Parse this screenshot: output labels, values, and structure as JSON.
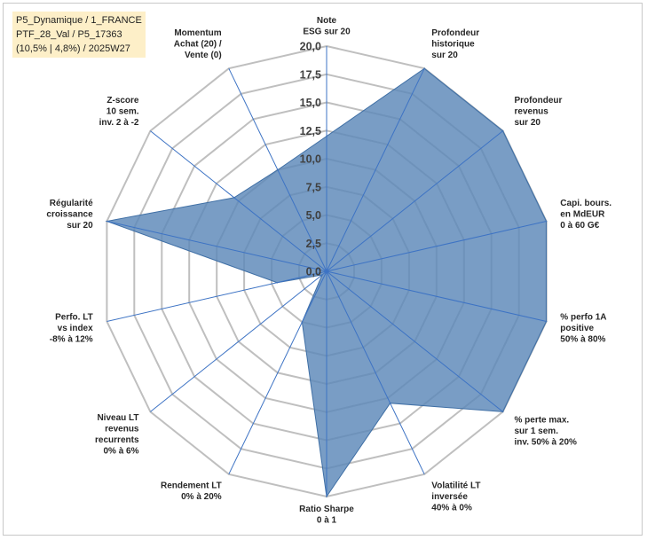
{
  "info": {
    "line1": "P5_Dynamique / 1_FRANCE",
    "line2": "PTF_28_Val / P5_17363",
    "line3": "(10,5% | 4,8%) / 2025W27"
  },
  "colors": {
    "fill": "#5b87b8",
    "stroke": "#3f6fa5",
    "grid": "#bfbfbf",
    "spoke": "#3d73c4",
    "info_bg": "#fdefc8"
  },
  "chart_data": {
    "type": "radar",
    "title": "",
    "rlim": [
      0,
      20
    ],
    "tick_labels": [
      "0,0",
      "2,5",
      "5,0",
      "7,5",
      "10,0",
      "12,5",
      "15,0",
      "17,5",
      "20,0"
    ],
    "axes": [
      [
        "Note",
        "ESG sur 20"
      ],
      [
        "Profondeur",
        "historique",
        "sur 20"
      ],
      [
        "Profondeur",
        "revenus",
        "sur 20"
      ],
      [
        "Capi. bours.",
        "en MdEUR",
        "0 à 60 G€"
      ],
      [
        "% perfo 1A",
        "positive",
        "50% à 80%"
      ],
      [
        "% perte max.",
        "sur 1 sem.",
        "inv. 50% à 20%"
      ],
      [
        "Volatilité LT",
        "inversée",
        "40% à 0%"
      ],
      [
        "Ratio Sharpe",
        "0 à 1"
      ],
      [
        "Rendement LT",
        "0% à 20%"
      ],
      [
        "Niveau LT",
        "revenus",
        "recurrents",
        "0% à 6%"
      ],
      [
        "Perfo. LT",
        "vs index",
        "-8% à 12%"
      ],
      [
        "Régularité",
        "croissance",
        "sur 20"
      ],
      [
        "Z-score",
        "10 sem.",
        "inv. 2 à -2"
      ],
      [
        "Momentum",
        "Achat (20) /",
        "Vente (0)"
      ]
    ],
    "values": [
      12,
      20,
      20,
      20,
      20,
      20,
      13,
      20,
      5,
      0.5,
      4.5,
      20,
      10.5,
      10
    ],
    "grid": true,
    "legend": "none"
  }
}
